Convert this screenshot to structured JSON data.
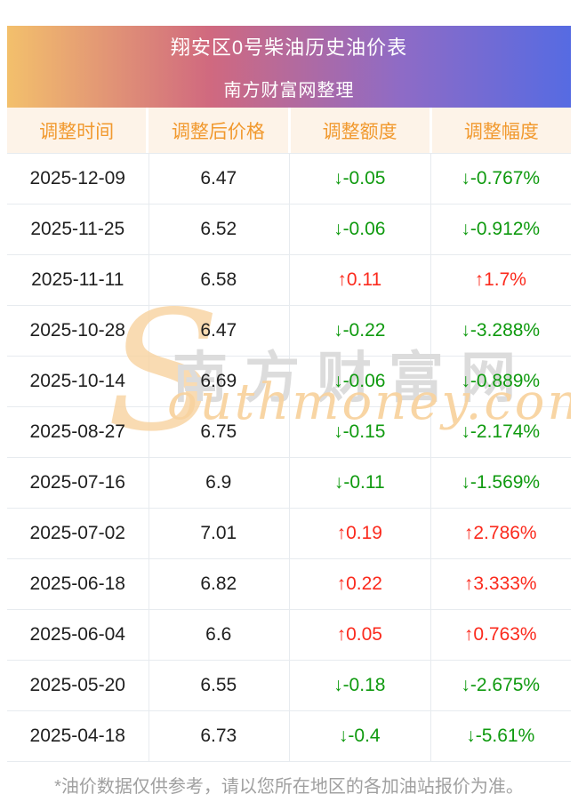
{
  "header": {
    "title": "翔安区0号柴油历史油价表",
    "subtitle": "南方财富网整理"
  },
  "table": {
    "columns": [
      "调整时间",
      "调整后价格",
      "调整额度",
      "调整幅度"
    ],
    "rows": [
      {
        "date": "2025-12-09",
        "price": "6.47",
        "change": "↓-0.05",
        "pct": "↓-0.767%",
        "trend": "down"
      },
      {
        "date": "2025-11-25",
        "price": "6.52",
        "change": "↓-0.06",
        "pct": "↓-0.912%",
        "trend": "down"
      },
      {
        "date": "2025-11-11",
        "price": "6.58",
        "change": "↑0.11",
        "pct": "↑1.7%",
        "trend": "up"
      },
      {
        "date": "2025-10-28",
        "price": "6.47",
        "change": "↓-0.22",
        "pct": "↓-3.288%",
        "trend": "down"
      },
      {
        "date": "2025-10-14",
        "price": "6.69",
        "change": "↓-0.06",
        "pct": "↓-0.889%",
        "trend": "down"
      },
      {
        "date": "2025-08-27",
        "price": "6.75",
        "change": "↓-0.15",
        "pct": "↓-2.174%",
        "trend": "down"
      },
      {
        "date": "2025-07-16",
        "price": "6.9",
        "change": "↓-0.11",
        "pct": "↓-1.569%",
        "trend": "down"
      },
      {
        "date": "2025-07-02",
        "price": "7.01",
        "change": "↑0.19",
        "pct": "↑2.786%",
        "trend": "up"
      },
      {
        "date": "2025-06-18",
        "price": "6.82",
        "change": "↑0.22",
        "pct": "↑3.333%",
        "trend": "up"
      },
      {
        "date": "2025-06-04",
        "price": "6.6",
        "change": "↑0.05",
        "pct": "↑0.763%",
        "trend": "up"
      },
      {
        "date": "2025-05-20",
        "price": "6.55",
        "change": "↓-0.18",
        "pct": "↓-2.675%",
        "trend": "down"
      },
      {
        "date": "2025-04-18",
        "price": "6.73",
        "change": "↓-0.4",
        "pct": "↓-5.61%",
        "trend": "down"
      }
    ]
  },
  "watermark": {
    "s_letter": "S",
    "zh_text": "南方财富网",
    "latin_text": "outhmoney.com"
  },
  "footer": {
    "note": "*油价数据仅供参考，请以您所在地区的各加油站报价为准。"
  },
  "colors": {
    "banner_gradient": [
      "#f3c06c",
      "#d0697f",
      "#8e6bc6",
      "#566be2"
    ],
    "column_header_bg": "#fdf3e8",
    "column_header_text": "#f1992e",
    "up_red": "#fb2a1d",
    "down_green": "#0f9a0f",
    "grid_line": "#e7ebef",
    "watermark_orange": "#f8d3a0",
    "watermark_gray": "#dcdcdc"
  }
}
